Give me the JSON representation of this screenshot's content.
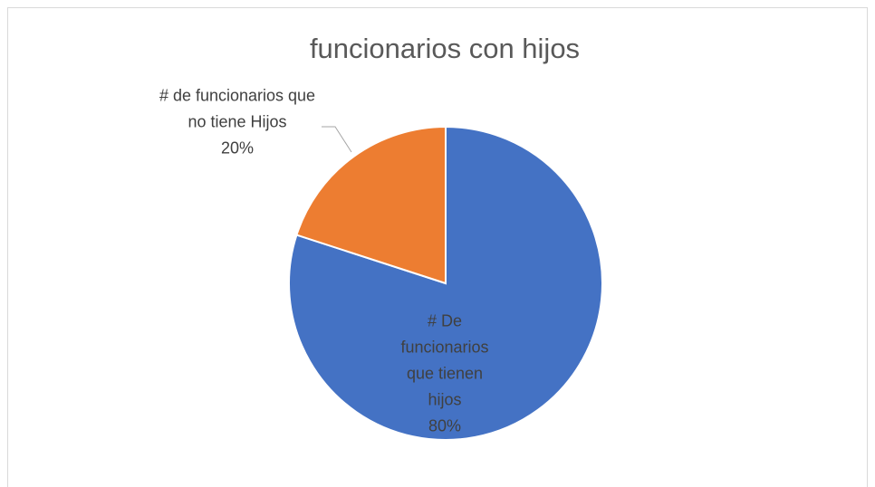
{
  "chart_data": {
    "type": "pie",
    "title": "funcionarios con hijos",
    "categories": [
      "# De funcionarios que tienen hijos",
      "# de funcionarios que no tiene Hijos"
    ],
    "values": [
      80,
      20
    ],
    "value_labels": [
      "80%",
      "20%"
    ],
    "colors": [
      "#4472c4",
      "#ed7d31"
    ]
  }
}
